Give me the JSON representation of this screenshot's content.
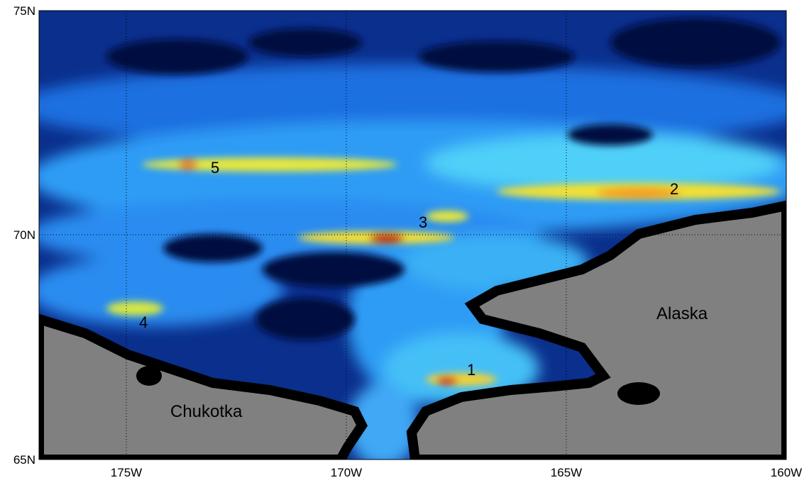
{
  "map": {
    "x_ticks": [
      "175W",
      "170W",
      "165W",
      "160W"
    ],
    "y_ticks": [
      "75N",
      "70N",
      "65N"
    ],
    "regions": [
      "Chukotka",
      "Alaska"
    ],
    "hotspots": [
      "1",
      "2",
      "3",
      "4",
      "5"
    ]
  }
}
